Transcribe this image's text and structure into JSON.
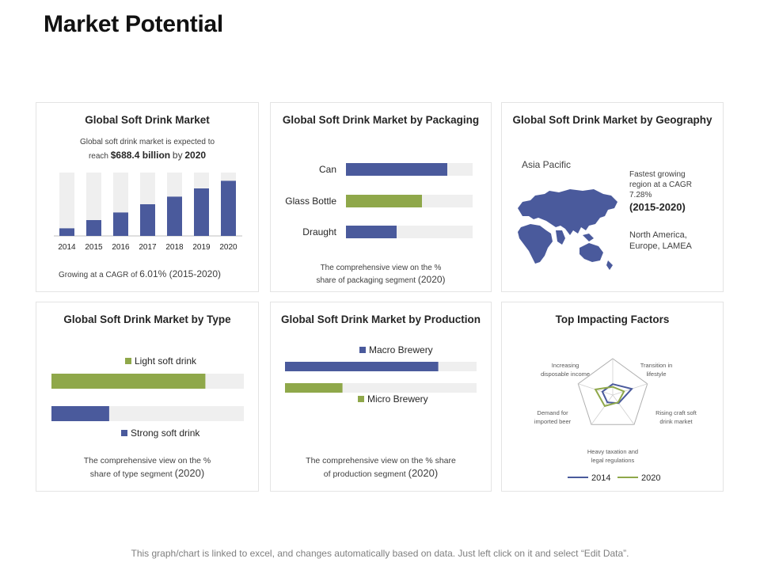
{
  "page": {
    "title": "Market Potential",
    "footer": "This graph/chart is linked to excel, and changes automatically based on data. Just left click on it and select “Edit Data”."
  },
  "colors": {
    "blue": "#4a5a9c",
    "green": "#8fa84a",
    "track": "#efefef",
    "radar_grid": "#b0b0b0"
  },
  "market_card": {
    "title": "Global Soft Drink Market",
    "desc_line1": "Global soft drink market is expected to",
    "desc_reach": "reach",
    "desc_amount": "$688.4 billion",
    "desc_by": "by",
    "desc_year": "2020",
    "cagr_prefix": "Growing at a CAGR of",
    "cagr_value": "6.01% (2015-2020)"
  },
  "packaging_card": {
    "title": "Global Soft Drink Market by Packaging",
    "note_line1": "The comprehensive view on the %",
    "note_line2": "share of packaging segment",
    "note_year": "(2020)"
  },
  "geography_card": {
    "title": "Global Soft Drink Market by Geography",
    "region": "Asia Pacific",
    "fast_line1": "Fastest growing",
    "fast_line2": "region at a CAGR",
    "fast_line3": "7.28%",
    "period": "(2015-2020)",
    "others_line1": "North America,",
    "others_line2": "Europe, LAMEA"
  },
  "type_card": {
    "title": "Global Soft Drink Market by Type",
    "note_line1": "The comprehensive view on the %",
    "note_line2": "share of type segment",
    "note_year": "(2020)"
  },
  "production_card": {
    "title": "Global Soft Drink Market by Production",
    "note_line1": "The comprehensive view on the % share",
    "note_line2": "of production segment",
    "note_year": "(2020)"
  },
  "factors_card": {
    "title": "Top Impacting Factors"
  },
  "chart_data": [
    {
      "type": "bar",
      "title": "Global Soft Drink Market",
      "categories": [
        "2014",
        "2015",
        "2016",
        "2017",
        "2018",
        "2019",
        "2020"
      ],
      "values": [
        12,
        25,
        37,
        50,
        62,
        75,
        87
      ],
      "ylim": [
        0,
        100
      ],
      "xlabel": "",
      "ylabel": "",
      "grid": false
    },
    {
      "type": "bar",
      "orientation": "horizontal",
      "title": "Global Soft Drink Market by Packaging",
      "categories": [
        "Can",
        "Glass Bottle",
        "Draught"
      ],
      "values": [
        80,
        60,
        40
      ],
      "ylim": [
        0,
        100
      ],
      "grid": false
    },
    {
      "type": "bar",
      "orientation": "horizontal",
      "title": "Global Soft Drink Market by Type",
      "categories": [
        "Light  soft drink",
        "Strong  soft drink"
      ],
      "values": [
        80,
        30
      ],
      "ylim": [
        0,
        100
      ],
      "legend": "inline",
      "grid": false
    },
    {
      "type": "bar",
      "orientation": "horizontal",
      "title": "Global Soft Drink Market by Production",
      "categories": [
        "Macro Brewery",
        "Micro Brewery"
      ],
      "values": [
        80,
        30
      ],
      "ylim": [
        0,
        100
      ],
      "legend": "inline",
      "grid": false
    },
    {
      "type": "radar",
      "title": "Top Impacting Factors",
      "categories": [
        "Increasing disposable income",
        "Transition in lifestyle",
        "Rising craft soft drink market",
        "Heavy taxation and legal regulations",
        "Demand for imported beer"
      ],
      "category_lines": [
        [
          "Increasing",
          "disposable income"
        ],
        [
          "Transition in",
          "lifestyle"
        ],
        [
          "Rising craft  soft",
          "drink market"
        ],
        [
          "Heavy taxation and",
          "legal regulations"
        ],
        [
          "Demand for",
          "imported beer"
        ]
      ],
      "series": [
        {
          "name": "2014",
          "values": [
            1.2,
            2.2,
            1.1,
            1.0,
            1.2
          ]
        },
        {
          "name": "2020",
          "values": [
            0.9,
            1.3,
            1.0,
            1.5,
            2.0
          ]
        }
      ],
      "ylim": [
        0,
        4
      ],
      "legend": "bottom"
    }
  ]
}
